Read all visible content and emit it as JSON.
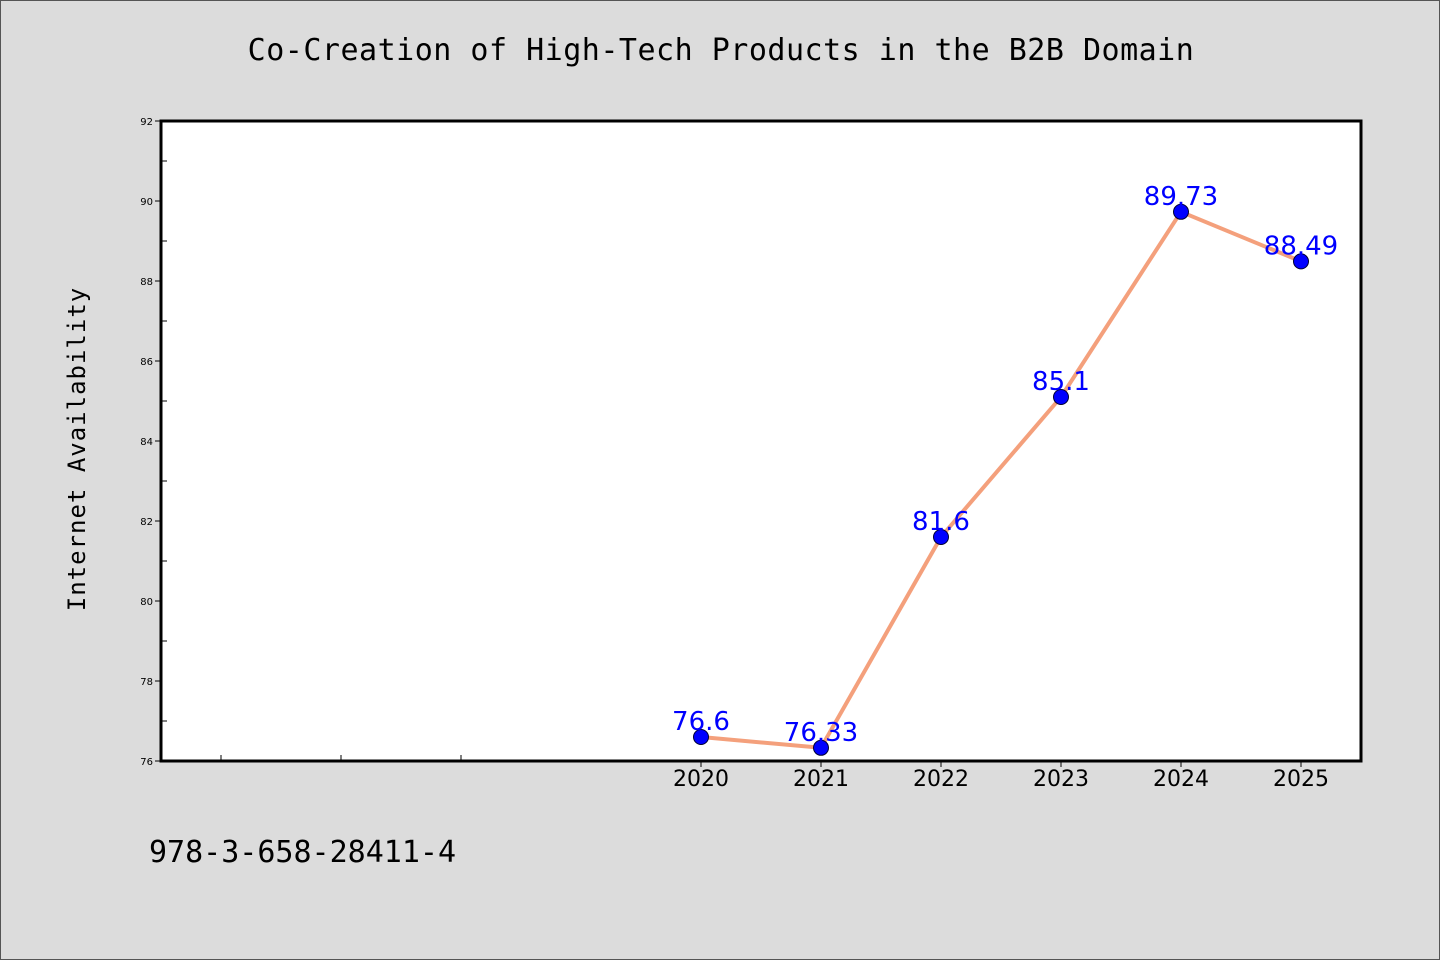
{
  "colors": {
    "page_background": "#dcdcdc",
    "plot_background": "#ffffff",
    "line": "#f4a07c",
    "marker": "#0000ff",
    "data_label": "#0000ff"
  },
  "footer": {
    "code": "978-3-658-28411-4"
  },
  "chart_data": {
    "type": "line",
    "title": "Co-Creation of High-Tech Products in the B2B Domain",
    "xlabel": "",
    "ylabel": "Internet Availability",
    "x": [
      "2020",
      "2021",
      "2022",
      "2023",
      "2024",
      "2025"
    ],
    "series": [
      {
        "values": [
          76.6,
          76.33,
          81.6,
          85.1,
          89.73,
          88.49
        ],
        "labels": [
          "76.6",
          "76.33",
          "81.6",
          "85.1",
          "89.73",
          "88.49"
        ]
      }
    ],
    "ylim": [
      76,
      92
    ],
    "yticks": [
      "76",
      "78",
      "80",
      "82",
      "84",
      "86",
      "88",
      "90",
      "92"
    ],
    "x_slots": 10,
    "grid": false,
    "legend": "none"
  }
}
